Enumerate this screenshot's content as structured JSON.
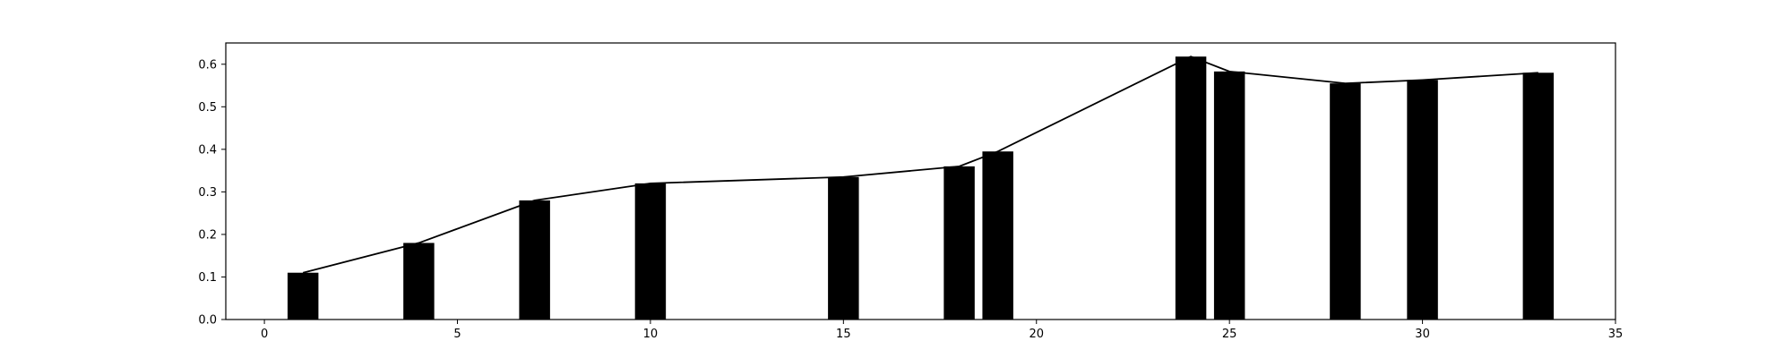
{
  "chart_data": {
    "type": "bar",
    "title": "",
    "xlabel": "",
    "ylabel": "",
    "xlim": [
      -1,
      35
    ],
    "ylim": [
      0,
      0.65
    ],
    "grid": false,
    "x_ticks": [
      0,
      5,
      10,
      15,
      20,
      25,
      30,
      35
    ],
    "y_ticks": [
      0.0,
      0.1,
      0.2,
      0.3,
      0.4,
      0.5,
      0.6
    ],
    "x_tick_labels": [
      "0",
      "5",
      "10",
      "15",
      "20",
      "25",
      "30",
      "35"
    ],
    "y_tick_labels": [
      "0.0",
      "0.1",
      "0.2",
      "0.3",
      "0.4",
      "0.5",
      "0.6"
    ],
    "bar_width": 0.8,
    "x": [
      1,
      4,
      7,
      10,
      15,
      18,
      19,
      24,
      25,
      28,
      30,
      33
    ],
    "values": [
      0.11,
      0.18,
      0.28,
      0.32,
      0.335,
      0.36,
      0.395,
      0.618,
      0.583,
      0.555,
      0.563,
      0.58
    ],
    "overlay_line": {
      "type": "line",
      "x": [
        1,
        4,
        7,
        10,
        15,
        18,
        19,
        24,
        25,
        28,
        30,
        33
      ],
      "values": [
        0.11,
        0.18,
        0.28,
        0.32,
        0.335,
        0.36,
        0.395,
        0.618,
        0.583,
        0.555,
        0.563,
        0.58
      ]
    },
    "colors": {
      "bar": "#000000",
      "line": "#000000",
      "axes": "#000000",
      "background": "#ffffff"
    }
  }
}
